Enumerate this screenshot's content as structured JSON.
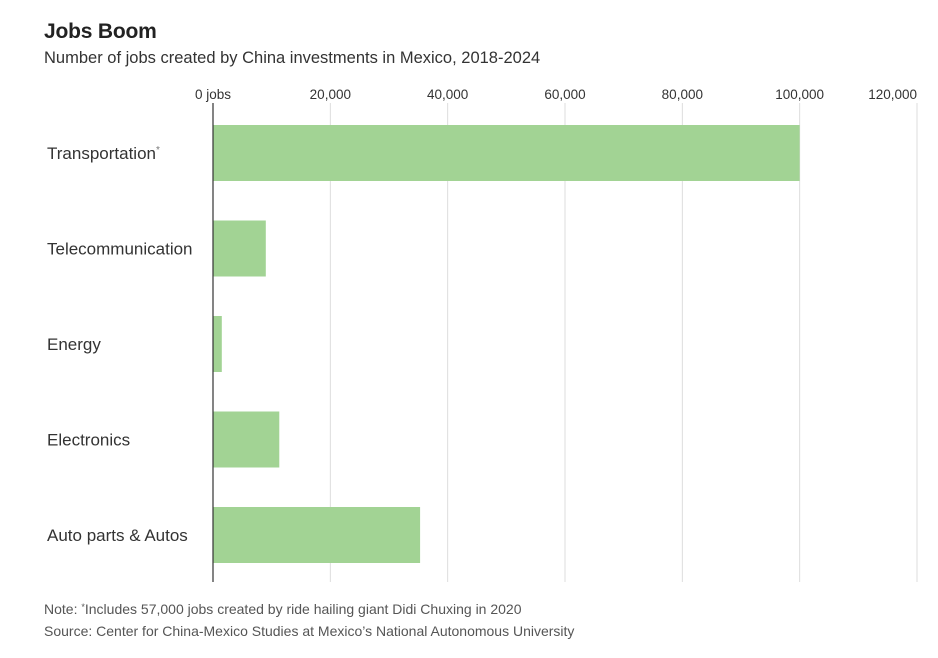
{
  "header": {
    "title": "Jobs Boom",
    "subtitle": "Number of jobs created by China investments in Mexico, 2018-2024"
  },
  "footer": {
    "note_prefix": "Note: ",
    "note_marker": "*",
    "note_text": "Includes 57,000 jobs created by ride hailing giant Didi Chuxing in 2020",
    "source": "Source: Center for China-Mexico Studies at Mexico’s National Autonomous University"
  },
  "colors": {
    "bar": "#a2d394",
    "grid": "#dddddd",
    "axis": "#333333",
    "text": "#333333"
  },
  "chart_data": {
    "type": "bar",
    "orientation": "horizontal",
    "categories": [
      "Transportation",
      "Telecommunication",
      "Energy",
      "Electronics",
      "Auto parts & Autos"
    ],
    "category_markers": [
      "*",
      "",
      "",
      "",
      ""
    ],
    "values": [
      100000,
      9000,
      1500,
      11300,
      35300
    ],
    "xlim": [
      0,
      120000
    ],
    "x_ticks": [
      0,
      20000,
      40000,
      60000,
      80000,
      100000,
      120000
    ],
    "x_tick_labels": [
      "0 jobs",
      "20,000",
      "40,000",
      "60,000",
      "80,000",
      "100,000",
      "120,000"
    ],
    "x_axis_position": "top",
    "grid": true,
    "legend": "none",
    "title": "Jobs Boom",
    "subtitle": "Number of jobs created by China investments in Mexico, 2018-2024",
    "xlabel": "",
    "ylabel": ""
  }
}
